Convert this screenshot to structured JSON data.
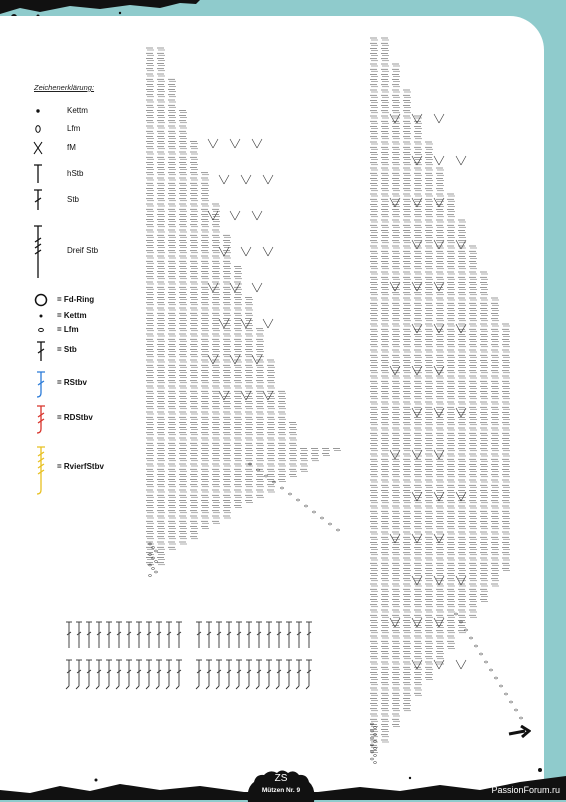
{
  "legend": {
    "title": "Zeichenerklärung:",
    "items": [
      {
        "symbol": "dot-icon",
        "label": "Kettm"
      },
      {
        "symbol": "oval-icon",
        "label": "Lfm"
      },
      {
        "symbol": "x-stitch-icon",
        "label": "fM"
      },
      {
        "symbol": "half-treble-icon",
        "label": "hStb"
      },
      {
        "symbol": "treble-icon",
        "label": "Stb"
      },
      {
        "symbol": "triple-treble-icon",
        "label": "Dreif Stb"
      }
    ],
    "items2": [
      {
        "symbol": "ring-icon",
        "label": "= Fd-Ring",
        "color": "#111111"
      },
      {
        "symbol": "dot-icon",
        "label": "= Kettm",
        "color": "#111111"
      },
      {
        "symbol": "oval-icon",
        "label": "= Lfm",
        "color": "#111111"
      },
      {
        "symbol": "treble-icon",
        "label": "= Stb",
        "color": "#111111"
      },
      {
        "symbol": "relief-treble-front-icon",
        "label": "= RStbv",
        "color": "#2b7bd8"
      },
      {
        "symbol": "relief-double-treble-front-icon",
        "label": "= RDStbv",
        "color": "#d8332b"
      },
      {
        "symbol": "relief-quad-treble-front-icon",
        "label": "= RvierfStbv",
        "color": "#e8c020"
      }
    ]
  },
  "footer": {
    "logo": "ZS",
    "text": "Mützen Nr. 9"
  },
  "watermark": "PassionForum.ru",
  "colors": {
    "background": "#8fcbcc",
    "paper": "#ffffff",
    "ink": "#222222"
  }
}
